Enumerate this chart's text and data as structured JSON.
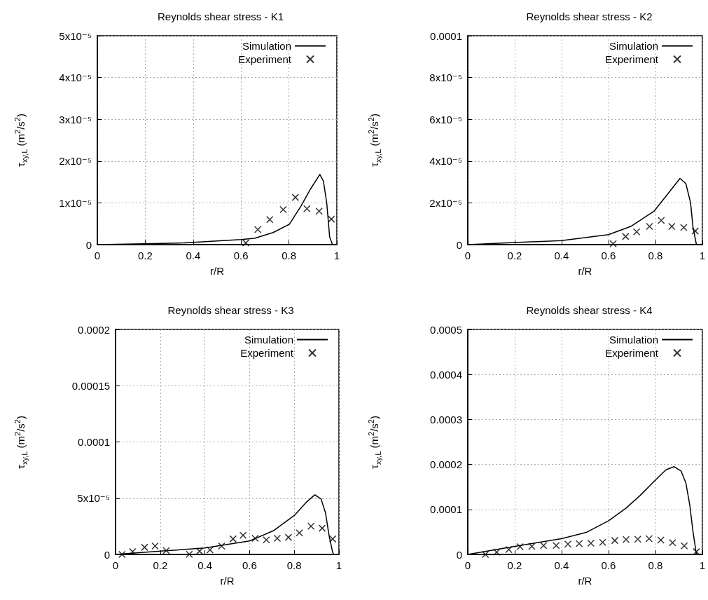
{
  "chart_data": [
    {
      "type": "line",
      "title": "Reynolds shear stress - K1",
      "xlabel": "r/R",
      "ylabel": "τ$_{xy,L}$ (m$^{2}$/s$^{2}$)",
      "xlim": [
        0,
        1
      ],
      "xticks": [
        0,
        0.2,
        0.4,
        0.6,
        0.8,
        1
      ],
      "ylim": [
        0,
        5e-05
      ],
      "yticks": [
        0,
        {
          "value": 1e-05,
          "label": "1x10⁻⁵"
        },
        {
          "value": 2e-05,
          "label": "2x10⁻⁵"
        },
        {
          "value": 3e-05,
          "label": "3x10⁻⁵"
        },
        {
          "value": 4e-05,
          "label": "4x10⁻⁵"
        },
        {
          "value": 5e-05,
          "label": "5x10⁻⁵"
        }
      ],
      "grid": true,
      "legend": "top right",
      "series": [
        {
          "name": "Simulation",
          "type": "line",
          "color": "#000000",
          "line_style": "solid",
          "x": [
            0,
            0.2,
            0.363,
            0.6,
            0.656,
            0.734,
            0.802,
            0.851,
            0.89,
            0.929,
            0.944,
            0.958,
            0.97,
            0.982
          ],
          "values": [
            0,
            2e-07,
            4e-07,
            1.2e-06,
            1.5e-06,
            2.9e-06,
            4.9e-06,
            9.3e-06,
            1.33e-05,
            1.68e-05,
            1.52e-05,
            9.9e-06,
            1.8e-06,
            0
          ]
        },
        {
          "name": "Experiment",
          "type": "scatter",
          "color": "#000000",
          "marker": "cross",
          "x": [
            0.62,
            0.67,
            0.72,
            0.776,
            0.827,
            0.875,
            0.926,
            0.977
          ],
          "values": [
            4e-07,
            3.6e-06,
            6e-06,
            8.4e-06,
            1.13e-05,
            8.6e-06,
            8e-06,
            6.1e-06
          ]
        }
      ]
    },
    {
      "type": "line",
      "title": "Reynolds shear stress - K2",
      "xlabel": "r/R",
      "ylabel": "τ$_{xy,L}$ (m$^{2}$/s$^{2}$)",
      "xlim": [
        0,
        1
      ],
      "xticks": [
        0,
        0.2,
        0.4,
        0.6,
        0.8,
        1
      ],
      "ylim": [
        0,
        0.0001
      ],
      "yticks": [
        0,
        {
          "value": 2e-05,
          "label": "2x10⁻⁵"
        },
        {
          "value": 4e-05,
          "label": "4x10⁻⁵"
        },
        {
          "value": 6e-05,
          "label": "6x10⁻⁵"
        },
        {
          "value": 8e-05,
          "label": "8x10⁻⁵"
        },
        0.0001
      ],
      "grid": true,
      "legend": "top right",
      "series": [
        {
          "name": "Simulation",
          "type": "line",
          "color": "#000000",
          "line_style": "solid",
          "x": [
            0,
            0.2,
            0.4,
            0.6,
            0.695,
            0.795,
            0.855,
            0.905,
            0.93,
            0.95,
            0.96,
            0.975
          ],
          "values": [
            0,
            1e-06,
            1.9e-06,
            4.8e-06,
            8.7e-06,
            1.61e-05,
            2.46e-05,
            3.17e-05,
            2.92e-05,
            2.01e-05,
            8.7e-06,
            0
          ]
        },
        {
          "name": "Experiment",
          "type": "scatter",
          "color": "#000000",
          "marker": "cross",
          "x": [
            0.62,
            0.673,
            0.72,
            0.775,
            0.825,
            0.87,
            0.921,
            0.97
          ],
          "values": [
            4e-07,
            3.9e-06,
            6.1e-06,
            8.7e-06,
            1.16e-05,
            8.7e-06,
            8.2e-06,
            6.5e-06
          ]
        }
      ]
    },
    {
      "type": "line",
      "title": "Reynolds shear stress - K3",
      "xlabel": "r/R",
      "ylabel": "τ$_{xy,L}$ (m$^{2}$/s$^{2}$)",
      "xlim": [
        0,
        1
      ],
      "xticks": [
        0,
        0.2,
        0.4,
        0.6,
        0.8,
        1
      ],
      "ylim": [
        0,
        0.0002
      ],
      "yticks": [
        0,
        {
          "value": 5e-05,
          "label": "5x10⁻⁵"
        },
        0.0001,
        0.00015,
        0.0002
      ],
      "grid": true,
      "legend": "top right",
      "series": [
        {
          "name": "Simulation",
          "type": "line",
          "color": "#000000",
          "line_style": "solid",
          "x": [
            0,
            0.2,
            0.4,
            0.6,
            0.706,
            0.8,
            0.852,
            0.892,
            0.92,
            0.94,
            0.956,
            0.972,
            0.977
          ],
          "values": [
            0,
            2.9e-06,
            5.7e-06,
            1.2e-05,
            2.1e-05,
            3.46e-05,
            4.6e-05,
            5.3e-05,
            4.93e-05,
            3.69e-05,
            1.65e-05,
            1.8e-06,
            0
          ]
        },
        {
          "name": "Experiment",
          "type": "scatter",
          "color": "#000000",
          "marker": "cross",
          "x": [
            0.029,
            0.076,
            0.13,
            0.177,
            0.227,
            0.33,
            0.376,
            0.423,
            0.475,
            0.526,
            0.571,
            0.625,
            0.675,
            0.724,
            0.774,
            0.823,
            0.875,
            0.925,
            0.972
          ],
          "values": [
            0,
            2.5e-06,
            6.3e-06,
            7.5e-06,
            3.4e-06,
            2e-07,
            2.9e-06,
            4.1e-06,
            7.5e-06,
            1.38e-05,
            1.7e-05,
            1.43e-05,
            1.29e-05,
            1.43e-05,
            1.52e-05,
            1.92e-05,
            2.51e-05,
            2.33e-05,
            1.38e-05
          ]
        }
      ]
    },
    {
      "type": "line",
      "title": "Reynolds shear stress - K4",
      "xlabel": "r/R",
      "ylabel": "τ$_{xy,L}$ (m$^{2}$/s$^{2}$)",
      "xlim": [
        0,
        1
      ],
      "xticks": [
        0,
        0.2,
        0.4,
        0.6,
        0.8,
        1
      ],
      "ylim": [
        0,
        0.0005
      ],
      "yticks": [
        0,
        0.0001,
        0.0002,
        0.0003,
        0.0004,
        0.0005
      ],
      "grid": true,
      "legend": "top right",
      "series": [
        {
          "name": "Simulation",
          "type": "line",
          "color": "#000000",
          "line_style": "solid",
          "x": [
            0,
            0.2,
            0.4,
            0.505,
            0.601,
            0.675,
            0.735,
            0.8,
            0.845,
            0.88,
            0.91,
            0.93,
            0.947,
            0.96,
            0.975
          ],
          "values": [
            0,
            1.8e-05,
            3.5e-05,
            4.9e-05,
            7.5e-05,
            0.000103,
            0.000131,
            0.000165,
            0.000188,
            0.000195,
            0.000185,
            0.000159,
            0.000109,
            5.2e-05,
            0
          ]
        },
        {
          "name": "Experiment",
          "type": "scatter",
          "color": "#000000",
          "marker": "cross",
          "x": [
            0.075,
            0.123,
            0.175,
            0.223,
            0.273,
            0.323,
            0.377,
            0.427,
            0.475,
            0.525,
            0.575,
            0.627,
            0.675,
            0.725,
            0.773,
            0.823,
            0.873,
            0.923,
            0.975
          ],
          "values": [
            0,
            5e-06,
            1.1e-05,
            1.7e-05,
            1.8e-05,
            2e-05,
            2e-05,
            2.3e-05,
            2.4e-05,
            2.5e-05,
            2.7e-05,
            3.1e-05,
            3.3e-05,
            3.4e-05,
            3.5e-05,
            3.2e-05,
            2.6e-05,
            1.9e-05,
            6e-06
          ]
        }
      ]
    }
  ]
}
